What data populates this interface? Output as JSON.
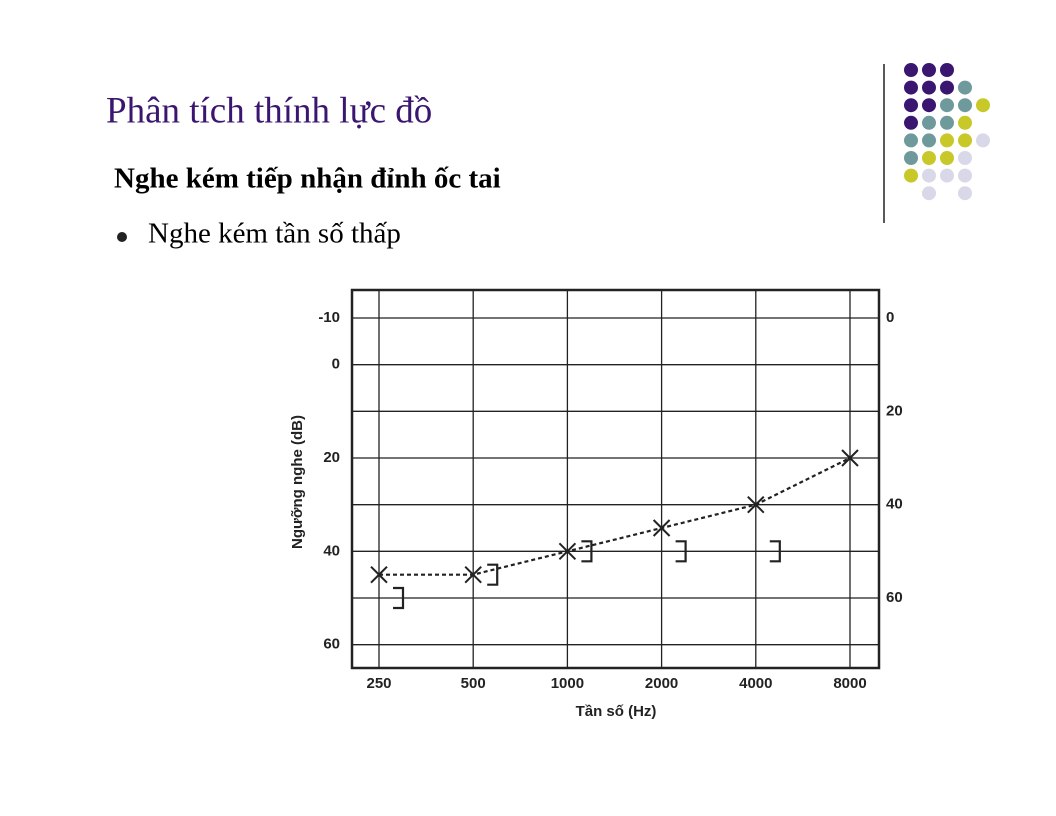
{
  "slide": {
    "title": "Phân tích thính lực đồ",
    "subtitle": "Nghe kém tiếp nhận đỉnh ốc tai",
    "bullets": [
      "Nghe kém tần số thấp"
    ]
  },
  "chart_data": {
    "type": "line",
    "y_label": "Ngưỡng nghe (dB)",
    "x_label": "Tần số (Hz)",
    "categories": [
      "250",
      "500",
      "1000",
      "2000",
      "4000",
      "8000"
    ],
    "series": [
      {
        "marker": "x",
        "line": "dashed",
        "color": "#222222",
        "values": [
          45,
          45,
          40,
          35,
          30,
          20
        ]
      },
      {
        "marker": "bracket",
        "color": "#222222",
        "values": [
          50,
          45,
          40,
          40,
          40,
          null
        ]
      }
    ],
    "ylim": [
      -16,
      65
    ],
    "y_inverted": true,
    "yticks": [
      -10,
      0,
      20,
      40,
      60
    ],
    "y_gridlines": [
      -10,
      0,
      10,
      20,
      30,
      40,
      50,
      60
    ],
    "y2lim": [
      -6,
      75
    ],
    "y2ticks": [
      0,
      20,
      40,
      60
    ],
    "grid": true
  }
}
